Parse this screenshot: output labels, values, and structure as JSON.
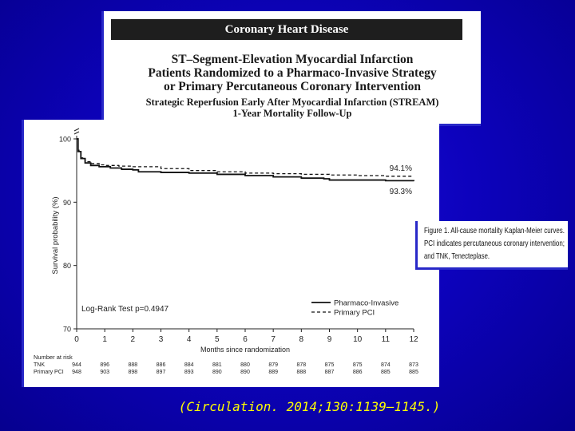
{
  "header": {
    "category": "Coronary Heart Disease",
    "title_lines": [
      "ST–Segment-Elevation Myocardial Infarction",
      "Patients Randomized to a Pharmaco-Invasive Strategy",
      "or Primary Percutaneous Coronary Intervention"
    ],
    "subtitle_lines": [
      "Strategic Reperfusion Early After Myocardial Infarction (STREAM)",
      "1-Year Mortality Follow-Up"
    ]
  },
  "figure_caption": [
    "Figure 1. All-cause mortality Kaplan-Meier curves.",
    "PCI indicates percutaneous coronary intervention;",
    "and TNK, Tenecteplase."
  ],
  "citation": "(Circulation. 2014;130:1139–1145.)",
  "colors": {
    "background": "#0b00b4",
    "citation": "#ffff00",
    "frame": "#2828c8"
  },
  "chart_data": {
    "type": "line",
    "title": "",
    "xlabel": "Months since randomization",
    "ylabel": "Survival probability (%)",
    "xlim": [
      0,
      12
    ],
    "ylim": [
      70,
      100
    ],
    "x_ticks": [
      "0",
      "1",
      "2",
      "3",
      "4",
      "5",
      "6",
      "7",
      "8",
      "9",
      "10",
      "11",
      "12"
    ],
    "y_ticks": [
      "70",
      "80",
      "90",
      "100"
    ],
    "series": [
      {
        "name": "Pharmaco-Invasive",
        "style": "solid",
        "x": [
          0,
          0.05,
          0.15,
          0.3,
          0.5,
          0.8,
          1.2,
          1.6,
          2,
          2.2,
          3,
          4,
          5,
          6,
          7,
          8,
          8.8,
          9,
          10,
          11,
          12
        ],
        "y": [
          100,
          98,
          96.9,
          96.2,
          95.8,
          95.6,
          95.4,
          95.2,
          95.1,
          94.8,
          94.7,
          94.6,
          94.4,
          94.2,
          94.0,
          93.8,
          93.7,
          93.5,
          93.5,
          93.4,
          93.3
        ]
      },
      {
        "name": "Primary PCI",
        "style": "dashed",
        "x": [
          0,
          0.05,
          0.15,
          0.3,
          0.5,
          0.8,
          1,
          1.5,
          2,
          3,
          4,
          5,
          6,
          7,
          8,
          9,
          10,
          11,
          12
        ],
        "y": [
          100,
          98.2,
          97.0,
          96.4,
          96.1,
          95.9,
          95.8,
          95.7,
          95.6,
          95.3,
          95.0,
          94.8,
          94.6,
          94.5,
          94.4,
          94.3,
          94.2,
          94.1,
          94.1
        ]
      }
    ],
    "end_labels": [
      "94.1%",
      "93.3%"
    ],
    "annotation": "Log-Rank Test p=0.4947",
    "legend_position": "bottom-right",
    "risk_table": {
      "title": "Number at risk",
      "rows": [
        {
          "label": "TNK",
          "values": [
            "944",
            "896",
            "888",
            "886",
            "884",
            "881",
            "880",
            "879",
            "878",
            "875",
            "875",
            "874",
            "873"
          ]
        },
        {
          "label": "Primary PCI",
          "values": [
            "948",
            "903",
            "898",
            "897",
            "893",
            "890",
            "890",
            "889",
            "888",
            "887",
            "886",
            "885",
            "885"
          ]
        }
      ]
    }
  }
}
